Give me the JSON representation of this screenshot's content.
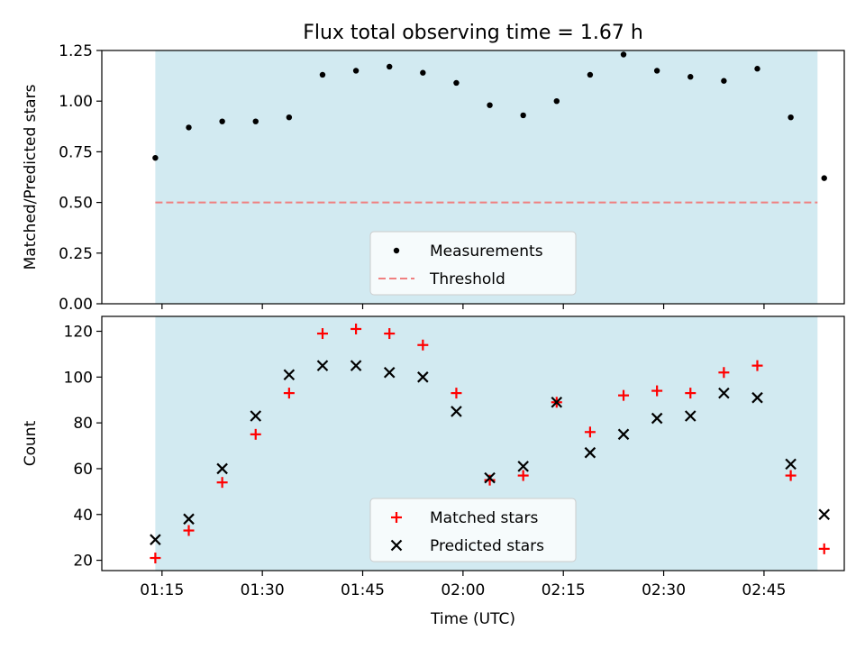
{
  "title": "Flux total observing time = 1.67 h",
  "chart_data": [
    {
      "type": "scatter",
      "ylabel": "Matched/Predicted stars",
      "xlabel": "",
      "xlim": [
        "01:06",
        "02:57"
      ],
      "ylim": [
        0,
        1.25
      ],
      "yticks": [
        "0.00",
        "0.25",
        "0.50",
        "0.75",
        "1.00",
        "1.25"
      ],
      "grid": false,
      "legend_position": "lower-center",
      "shaded_span": [
        "01:14",
        "02:53"
      ],
      "threshold": 0.5,
      "colors": {
        "shade": "#add8e6",
        "measurements": "#000000",
        "threshold": "#f08080"
      },
      "legend": [
        "Measurements",
        "Threshold"
      ],
      "series": [
        {
          "name": "Measurements",
          "x": [
            "01:14",
            "01:19",
            "01:24",
            "01:29",
            "01:34",
            "01:39",
            "01:44",
            "01:49",
            "01:54",
            "01:59",
            "02:04",
            "02:09",
            "02:14",
            "02:19",
            "02:24",
            "02:29",
            "02:34",
            "02:39",
            "02:44",
            "02:49",
            "02:54"
          ],
          "y": [
            0.72,
            0.87,
            0.9,
            0.9,
            0.92,
            1.13,
            1.15,
            1.17,
            1.14,
            1.09,
            0.98,
            0.93,
            1.0,
            1.13,
            1.23,
            1.15,
            1.12,
            1.1,
            1.16,
            0.92,
            0.62
          ]
        }
      ]
    },
    {
      "type": "scatter",
      "ylabel": "Count",
      "xlabel": "Time (UTC)",
      "xlim": [
        "01:06",
        "02:57"
      ],
      "ylim": [
        15.5,
        126.5
      ],
      "yticks": [
        "20",
        "40",
        "60",
        "80",
        "100",
        "120"
      ],
      "xticks": [
        "01:15",
        "01:30",
        "01:45",
        "02:00",
        "02:15",
        "02:30",
        "02:45"
      ],
      "grid": false,
      "legend_position": "lower-center",
      "shaded_span": [
        "01:14",
        "02:53"
      ],
      "colors": {
        "shade": "#add8e6",
        "matched": "#ff0000",
        "predicted": "#000000"
      },
      "legend": [
        "Matched stars",
        "Predicted stars"
      ],
      "series": [
        {
          "name": "Matched stars",
          "marker": "+",
          "x": [
            "01:14",
            "01:19",
            "01:24",
            "01:29",
            "01:34",
            "01:39",
            "01:44",
            "01:49",
            "01:54",
            "01:59",
            "02:04",
            "02:09",
            "02:14",
            "02:19",
            "02:24",
            "02:29",
            "02:34",
            "02:39",
            "02:44",
            "02:49",
            "02:54"
          ],
          "y": [
            21,
            33,
            54,
            75,
            93,
            119,
            121,
            119,
            114,
            93,
            55,
            57,
            89,
            76,
            92,
            94,
            93,
            102,
            105,
            57,
            25
          ]
        },
        {
          "name": "Predicted stars",
          "marker": "x",
          "x": [
            "01:14",
            "01:19",
            "01:24",
            "01:29",
            "01:34",
            "01:39",
            "01:44",
            "01:49",
            "01:54",
            "01:59",
            "02:04",
            "02:09",
            "02:14",
            "02:19",
            "02:24",
            "02:29",
            "02:34",
            "02:39",
            "02:44",
            "02:49",
            "02:54"
          ],
          "y": [
            29,
            38,
            60,
            83,
            101,
            105,
            105,
            102,
            100,
            85,
            56,
            61,
            89,
            67,
            75,
            82,
            83,
            93,
            91,
            62,
            40
          ]
        }
      ]
    }
  ]
}
